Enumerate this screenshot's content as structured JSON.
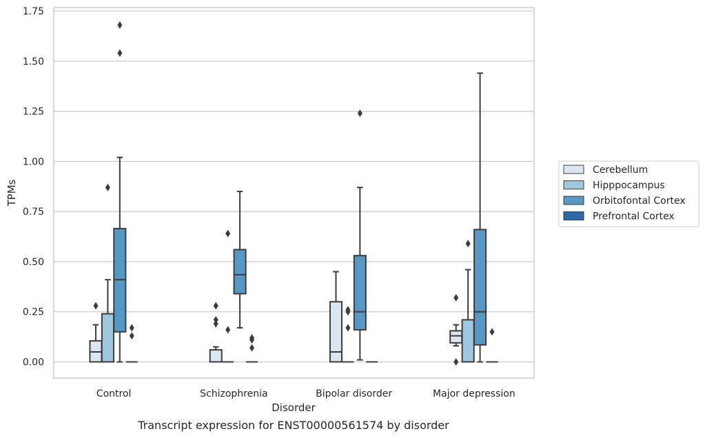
{
  "chart_data": {
    "type": "box",
    "caption": "Transcript expression for ENST00000561574 by disorder",
    "xlabel": "Disorder",
    "ylabel": "TPMs",
    "ylim": [
      -0.08,
      1.76
    ],
    "yticks": [
      "0.00",
      "0.25",
      "0.50",
      "0.75",
      "1.00",
      "1.25",
      "1.50",
      "1.75"
    ],
    "ytick_values": [
      0,
      0.25,
      0.5,
      0.75,
      1.0,
      1.25,
      1.5,
      1.75
    ],
    "grid": "horizontal",
    "legend_position": "right",
    "categories": [
      "Control",
      "Schizophrenia",
      "Bipolar disorder",
      "Major depression"
    ],
    "series": [
      {
        "name": "Cerebellum",
        "color": "#dbe6f2",
        "boxes": [
          {
            "whislo": 0,
            "q1": 0,
            "med": 0.05,
            "q3": 0.105,
            "whishi": 0.185,
            "fliers": [
              0.28
            ]
          },
          {
            "whislo": 0,
            "q1": 0,
            "med": 0,
            "q3": 0.06,
            "whishi": 0.075,
            "fliers": [
              0.28,
              0.21,
              0.19
            ]
          },
          {
            "whislo": 0,
            "q1": 0,
            "med": 0.05,
            "q3": 0.3,
            "whishi": 0.45,
            "fliers": []
          },
          {
            "whislo": 0.08,
            "q1": 0.095,
            "med": 0.13,
            "q3": 0.155,
            "whishi": 0.185,
            "fliers": [
              0.32,
              0.0
            ]
          }
        ]
      },
      {
        "name": "Hipppocampus",
        "color": "#9ec8e0",
        "boxes": [
          {
            "whislo": 0,
            "q1": 0,
            "med": 0,
            "q3": 0.24,
            "whishi": 0.41,
            "fliers": [
              0.87
            ]
          },
          {
            "whislo": 0,
            "q1": 0,
            "med": 0,
            "q3": 0,
            "whishi": 0,
            "fliers": [
              0.64,
              0.16
            ]
          },
          {
            "whislo": 0,
            "q1": 0,
            "med": 0,
            "q3": 0,
            "whishi": 0,
            "fliers": [
              0.26,
              0.25,
              0.17
            ]
          },
          {
            "whislo": 0,
            "q1": 0,
            "med": 0,
            "q3": 0.21,
            "whishi": 0.46,
            "fliers": [
              0.59
            ]
          }
        ]
      },
      {
        "name": "Orbitofontal Cortex",
        "color": "#5598c6",
        "boxes": [
          {
            "whislo": 0,
            "q1": 0.15,
            "med": 0.41,
            "q3": 0.665,
            "whishi": 1.02,
            "fliers": [
              1.68,
              1.54
            ]
          },
          {
            "whislo": 0.17,
            "q1": 0.34,
            "med": 0.435,
            "q3": 0.56,
            "whishi": 0.85,
            "fliers": []
          },
          {
            "whislo": 0.01,
            "q1": 0.16,
            "med": 0.25,
            "q3": 0.53,
            "whishi": 0.87,
            "fliers": [
              1.24
            ]
          },
          {
            "whislo": 0,
            "q1": 0.085,
            "med": 0.25,
            "q3": 0.66,
            "whishi": 1.44,
            "fliers": []
          }
        ]
      },
      {
        "name": "Prefrontal Cortex",
        "color": "#2a6ba6",
        "boxes": [
          {
            "whislo": 0,
            "q1": 0,
            "med": 0,
            "q3": 0,
            "whishi": 0,
            "fliers": [
              0.17,
              0.13
            ]
          },
          {
            "whislo": 0,
            "q1": 0,
            "med": 0,
            "q3": 0,
            "whishi": 0,
            "fliers": [
              0.12,
              0.11,
              0.07
            ]
          },
          {
            "whislo": 0,
            "q1": 0,
            "med": 0,
            "q3": 0,
            "whishi": 0,
            "fliers": []
          },
          {
            "whislo": 0,
            "q1": 0,
            "med": 0,
            "q3": 0,
            "whishi": 0,
            "fliers": [
              0.15
            ]
          }
        ]
      }
    ]
  }
}
